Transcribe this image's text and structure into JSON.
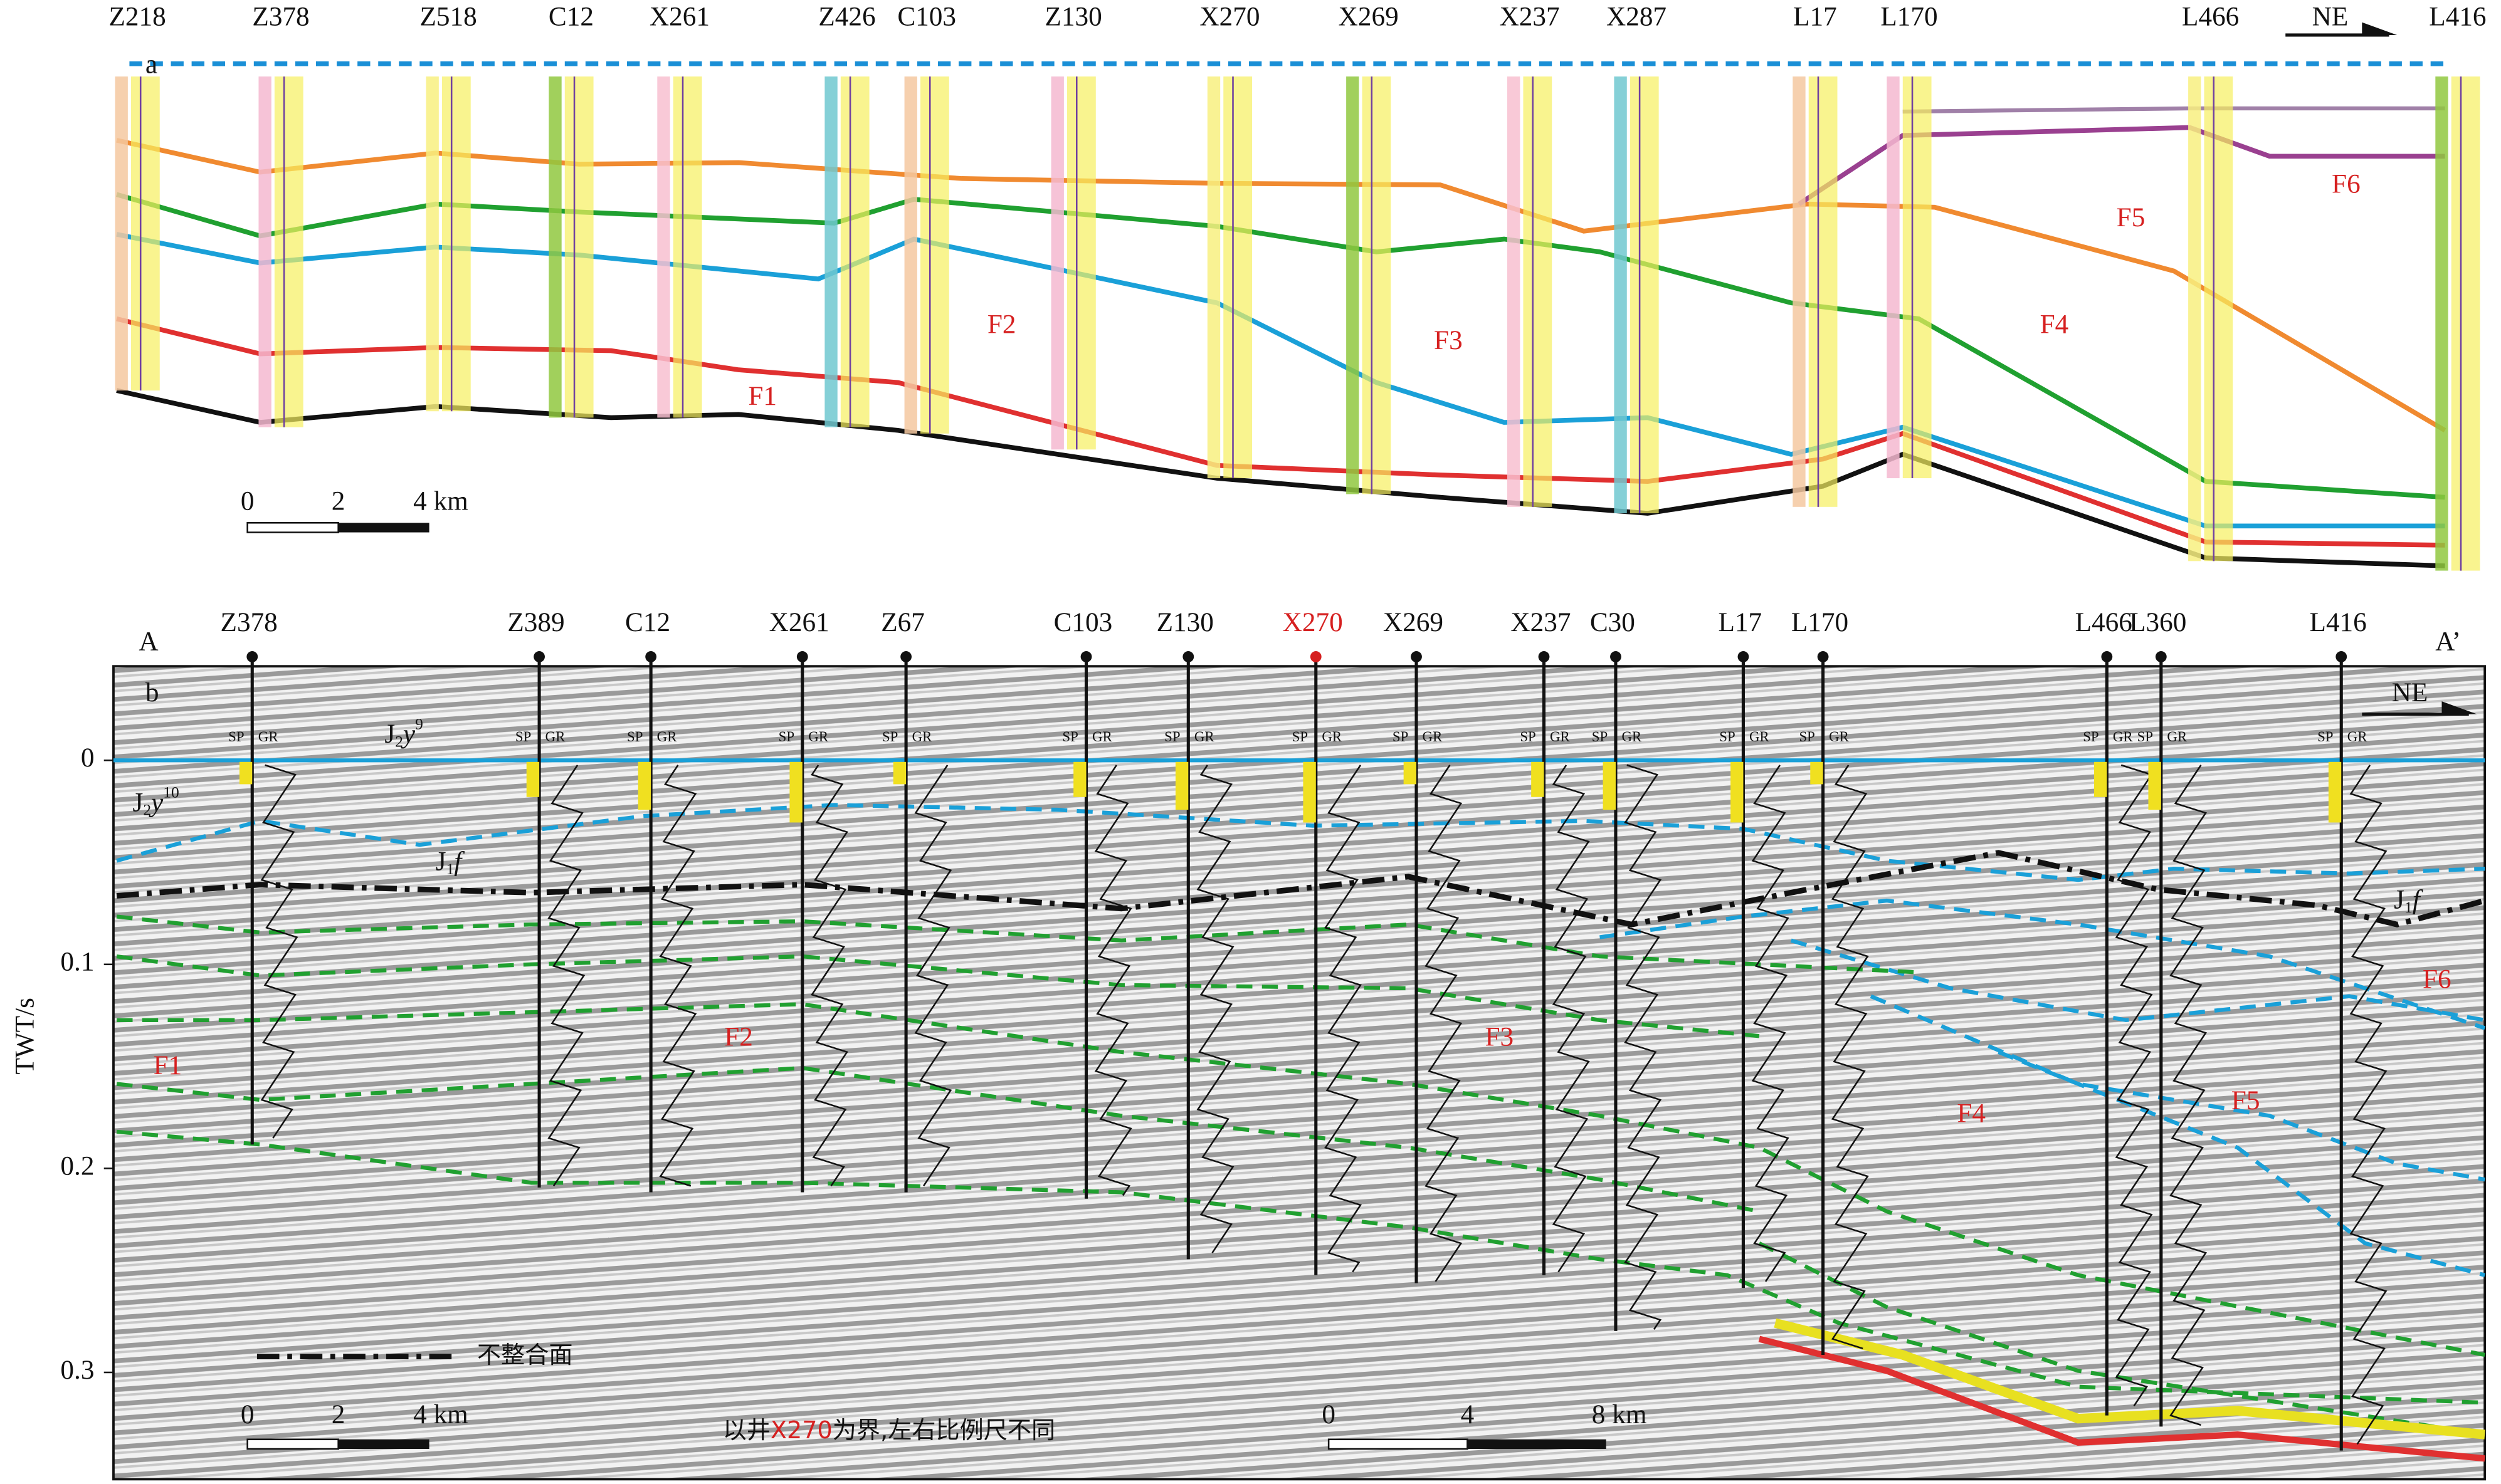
{
  "panel_a": {
    "label": "a",
    "direction": "NE",
    "wells": [
      "Z218",
      "Z378",
      "Z518",
      "C12",
      "X261",
      "Z426",
      "C103",
      "Z130",
      "X270",
      "X269",
      "X237",
      "X287",
      "L17",
      "L170",
      "L466",
      "L416"
    ],
    "facies": [
      "F1",
      "F2",
      "F3",
      "F4",
      "F5",
      "F6"
    ],
    "scale": [
      "0",
      "2",
      "4 km"
    ]
  },
  "panel_b": {
    "label": "b",
    "direction": "NE",
    "start": "A",
    "end": "A’",
    "wells": [
      "Z378",
      "Z389",
      "C12",
      "X261",
      "Z67",
      "C103",
      "Z130",
      "X270",
      "X269",
      "X237",
      "C30",
      "L17",
      "L170",
      "L466",
      "L360",
      "L416"
    ],
    "axis_label": "TWT/s",
    "ticks": [
      "0",
      "0.1",
      "0.2",
      "0.3"
    ],
    "facies": [
      "F1",
      "F2",
      "F3",
      "F4",
      "F5",
      "F6"
    ],
    "horizons": {
      "y9": {
        "base": "J",
        "sub": "2",
        "mid": "y",
        "sup": "9"
      },
      "y10": {
        "base": "J",
        "sub": "2",
        "mid": "y",
        "sup": "10"
      },
      "f_left": {
        "base": "J",
        "sub": "1",
        "mid": "f"
      },
      "f_right": {
        "base": "J",
        "sub": "1",
        "mid": "f"
      }
    },
    "log_labels": [
      "SP",
      "GR"
    ],
    "legend": "不整合面",
    "caption": [
      "以井",
      "X270",
      "为界,左右比例尺不同"
    ],
    "scale_left": [
      "0",
      "2",
      "4 km"
    ],
    "scale_right": [
      "0",
      "4",
      "8 km"
    ]
  }
}
